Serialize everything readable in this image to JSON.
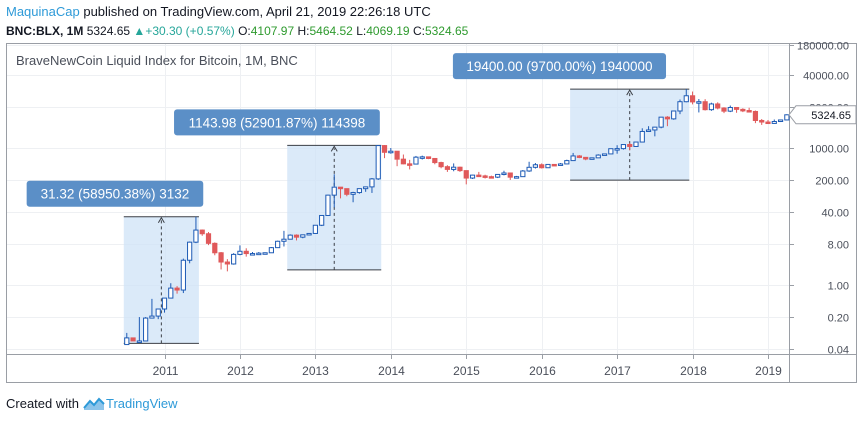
{
  "header": {
    "publisher": "MaquinaCap",
    "published_text": "published on TradingView.com, April 21, 2019 22:26:18 UTC",
    "symbol": "BNC:BLX, 1M",
    "last": "5324.65",
    "change": "+30.30 (+0.57%)",
    "o_label": "O:",
    "o_value": "4107.97",
    "h_label": "H:",
    "h_value": "5464.52",
    "l_label": "L:",
    "l_value": "4069.19",
    "c_label": "C:",
    "c_value": "5324.65"
  },
  "footer": {
    "created_with": "Created with",
    "brand": "TradingView"
  },
  "chart_data": {
    "type": "candlestick",
    "title": "BraveNewCoin Liquid Index for Bitcoin, 1M, BNC",
    "y_scale": "log",
    "y_ticks": [
      "180000.00",
      "40000.00",
      "8000.00",
      "1000.00",
      "200.00",
      "40.00",
      "8.00",
      "1.00",
      "0.20",
      "0.04"
    ],
    "x_ticks": [
      "2011",
      "2012",
      "2013",
      "2014",
      "2015",
      "2016",
      "2017",
      "2018",
      "2019"
    ],
    "last_price_label": "5324.65",
    "colors": {
      "up": "#1e5bb5",
      "down": "#e0595a",
      "range_fill": "#cfe3f7",
      "label_bg": "#5b8fc7",
      "grid": "#eef0f3"
    },
    "candles": [
      {
        "t": "2010-07",
        "o": 0.05,
        "h": 0.09,
        "l": 0.05,
        "c": 0.07
      },
      {
        "t": "2010-08",
        "o": 0.07,
        "h": 0.07,
        "l": 0.06,
        "c": 0.06
      },
      {
        "t": "2010-09",
        "o": 0.06,
        "h": 0.2,
        "l": 0.06,
        "c": 0.06
      },
      {
        "t": "2010-10",
        "o": 0.06,
        "h": 0.2,
        "l": 0.06,
        "c": 0.19
      },
      {
        "t": "2010-11",
        "o": 0.19,
        "h": 0.5,
        "l": 0.19,
        "c": 0.21
      },
      {
        "t": "2010-12",
        "o": 0.21,
        "h": 0.3,
        "l": 0.18,
        "c": 0.3
      },
      {
        "t": "2011-01",
        "o": 0.3,
        "h": 0.52,
        "l": 0.25,
        "c": 0.52
      },
      {
        "t": "2011-02",
        "o": 0.52,
        "h": 1.1,
        "l": 0.7,
        "c": 0.86
      },
      {
        "t": "2011-03",
        "o": 0.86,
        "h": 0.95,
        "l": 0.65,
        "c": 0.78
      },
      {
        "t": "2011-04",
        "o": 0.78,
        "h": 3.8,
        "l": 0.67,
        "c": 3.5
      },
      {
        "t": "2011-05",
        "o": 3.5,
        "h": 9.0,
        "l": 3.0,
        "c": 8.7
      },
      {
        "t": "2011-06",
        "o": 8.7,
        "h": 31.32,
        "l": 8.3,
        "c": 16.0
      },
      {
        "t": "2011-07",
        "o": 16.0,
        "h": 16.5,
        "l": 12.0,
        "c": 13.3
      },
      {
        "t": "2011-08",
        "o": 13.3,
        "h": 14.5,
        "l": 7.5,
        "c": 8.2
      },
      {
        "t": "2011-09",
        "o": 8.2,
        "h": 8.6,
        "l": 4.5,
        "c": 5.1
      },
      {
        "t": "2011-10",
        "o": 5.1,
        "h": 5.3,
        "l": 2.2,
        "c": 3.2
      },
      {
        "t": "2011-11",
        "o": 3.2,
        "h": 3.7,
        "l": 2.0,
        "c": 2.9
      },
      {
        "t": "2011-12",
        "o": 2.9,
        "h": 5.0,
        "l": 2.8,
        "c": 4.7
      },
      {
        "t": "2012-01",
        "o": 4.7,
        "h": 7.4,
        "l": 4.5,
        "c": 5.5
      },
      {
        "t": "2012-02",
        "o": 5.5,
        "h": 6.4,
        "l": 4.2,
        "c": 4.9
      },
      {
        "t": "2012-03",
        "o": 4.9,
        "h": 5.3,
        "l": 4.6,
        "c": 4.9
      },
      {
        "t": "2012-04",
        "o": 4.9,
        "h": 5.3,
        "l": 4.8,
        "c": 5.0
      },
      {
        "t": "2012-05",
        "o": 5.0,
        "h": 5.2,
        "l": 4.9,
        "c": 5.1
      },
      {
        "t": "2012-06",
        "o": 5.1,
        "h": 6.8,
        "l": 5.1,
        "c": 6.6
      },
      {
        "t": "2012-07",
        "o": 6.6,
        "h": 9.4,
        "l": 6.5,
        "c": 9.1
      },
      {
        "t": "2012-08",
        "o": 9.1,
        "h": 15.4,
        "l": 7.0,
        "c": 10.1
      },
      {
        "t": "2012-09",
        "o": 10.1,
        "h": 12.9,
        "l": 10.0,
        "c": 12.4
      },
      {
        "t": "2012-10",
        "o": 12.4,
        "h": 12.9,
        "l": 9.5,
        "c": 11.2
      },
      {
        "t": "2012-11",
        "o": 11.2,
        "h": 12.8,
        "l": 10.6,
        "c": 12.6
      },
      {
        "t": "2012-12",
        "o": 12.6,
        "h": 13.8,
        "l": 12.3,
        "c": 13.5
      },
      {
        "t": "2013-01",
        "o": 13.5,
        "h": 20.5,
        "l": 13.3,
        "c": 20.4
      },
      {
        "t": "2013-02",
        "o": 20.4,
        "h": 33.4,
        "l": 19.6,
        "c": 33.4
      },
      {
        "t": "2013-03",
        "o": 33.4,
        "h": 95,
        "l": 33.0,
        "c": 93
      },
      {
        "t": "2013-04",
        "o": 93,
        "h": 266,
        "l": 50,
        "c": 139
      },
      {
        "t": "2013-05",
        "o": 139,
        "h": 140,
        "l": 79,
        "c": 129
      },
      {
        "t": "2013-06",
        "o": 129,
        "h": 129,
        "l": 88,
        "c": 97
      },
      {
        "t": "2013-07",
        "o": 97,
        "h": 110,
        "l": 65,
        "c": 106
      },
      {
        "t": "2013-08",
        "o": 106,
        "h": 130,
        "l": 100,
        "c": 129
      },
      {
        "t": "2013-09",
        "o": 129,
        "h": 144,
        "l": 110,
        "c": 141
      },
      {
        "t": "2013-10",
        "o": 141,
        "h": 220,
        "l": 104,
        "c": 211
      },
      {
        "t": "2013-11",
        "o": 211,
        "h": 1143.98,
        "l": 200,
        "c": 1130
      },
      {
        "t": "2013-12",
        "o": 1130,
        "h": 1160,
        "l": 600,
        "c": 805
      },
      {
        "t": "2014-01",
        "o": 805,
        "h": 1000,
        "l": 750,
        "c": 850
      },
      {
        "t": "2014-02",
        "o": 850,
        "h": 850,
        "l": 400,
        "c": 570
      },
      {
        "t": "2014-03",
        "o": 570,
        "h": 720,
        "l": 440,
        "c": 450
      },
      {
        "t": "2014-04",
        "o": 450,
        "h": 550,
        "l": 340,
        "c": 445
      },
      {
        "t": "2014-05",
        "o": 445,
        "h": 670,
        "l": 440,
        "c": 630
      },
      {
        "t": "2014-06",
        "o": 630,
        "h": 680,
        "l": 560,
        "c": 640
      },
      {
        "t": "2014-07",
        "o": 640,
        "h": 650,
        "l": 570,
        "c": 590
      },
      {
        "t": "2014-08",
        "o": 590,
        "h": 600,
        "l": 440,
        "c": 480
      },
      {
        "t": "2014-09",
        "o": 480,
        "h": 500,
        "l": 360,
        "c": 390
      },
      {
        "t": "2014-10",
        "o": 390,
        "h": 420,
        "l": 300,
        "c": 340
      },
      {
        "t": "2014-11",
        "o": 340,
        "h": 460,
        "l": 310,
        "c": 380
      },
      {
        "t": "2014-12",
        "o": 380,
        "h": 390,
        "l": 300,
        "c": 320
      },
      {
        "t": "2015-01",
        "o": 320,
        "h": 320,
        "l": 160,
        "c": 220
      },
      {
        "t": "2015-02",
        "o": 220,
        "h": 260,
        "l": 210,
        "c": 255
      },
      {
        "t": "2015-03",
        "o": 255,
        "h": 300,
        "l": 240,
        "c": 245
      },
      {
        "t": "2015-04",
        "o": 245,
        "h": 260,
        "l": 215,
        "c": 236
      },
      {
        "t": "2015-05",
        "o": 236,
        "h": 248,
        "l": 225,
        "c": 230
      },
      {
        "t": "2015-06",
        "o": 230,
        "h": 268,
        "l": 220,
        "c": 264
      },
      {
        "t": "2015-07",
        "o": 264,
        "h": 318,
        "l": 252,
        "c": 284
      },
      {
        "t": "2015-08",
        "o": 284,
        "h": 285,
        "l": 200,
        "c": 230
      },
      {
        "t": "2015-09",
        "o": 230,
        "h": 245,
        "l": 225,
        "c": 236
      },
      {
        "t": "2015-10",
        "o": 236,
        "h": 330,
        "l": 235,
        "c": 314
      },
      {
        "t": "2015-11",
        "o": 314,
        "h": 500,
        "l": 300,
        "c": 378
      },
      {
        "t": "2015-12",
        "o": 378,
        "h": 470,
        "l": 355,
        "c": 430
      },
      {
        "t": "2016-01",
        "o": 430,
        "h": 460,
        "l": 355,
        "c": 370
      },
      {
        "t": "2016-02",
        "o": 370,
        "h": 445,
        "l": 365,
        "c": 437
      },
      {
        "t": "2016-03",
        "o": 437,
        "h": 440,
        "l": 405,
        "c": 416
      },
      {
        "t": "2016-04",
        "o": 416,
        "h": 470,
        "l": 415,
        "c": 448
      },
      {
        "t": "2016-05",
        "o": 448,
        "h": 555,
        "l": 445,
        "c": 530
      },
      {
        "t": "2016-06",
        "o": 530,
        "h": 780,
        "l": 530,
        "c": 670
      },
      {
        "t": "2016-07",
        "o": 670,
        "h": 700,
        "l": 600,
        "c": 624
      },
      {
        "t": "2016-08",
        "o": 624,
        "h": 625,
        "l": 540,
        "c": 574
      },
      {
        "t": "2016-09",
        "o": 574,
        "h": 612,
        "l": 570,
        "c": 609
      },
      {
        "t": "2016-10",
        "o": 609,
        "h": 730,
        "l": 605,
        "c": 700
      },
      {
        "t": "2016-11",
        "o": 700,
        "h": 750,
        "l": 690,
        "c": 742
      },
      {
        "t": "2016-12",
        "o": 742,
        "h": 975,
        "l": 740,
        "c": 965
      },
      {
        "t": "2017-01",
        "o": 965,
        "h": 1150,
        "l": 750,
        "c": 970
      },
      {
        "t": "2017-02",
        "o": 970,
        "h": 1200,
        "l": 920,
        "c": 1190
      },
      {
        "t": "2017-03",
        "o": 1190,
        "h": 1290,
        "l": 890,
        "c": 1080
      },
      {
        "t": "2017-04",
        "o": 1080,
        "h": 1350,
        "l": 1060,
        "c": 1350
      },
      {
        "t": "2017-05",
        "o": 1350,
        "h": 2700,
        "l": 1320,
        "c": 2300
      },
      {
        "t": "2017-06",
        "o": 2300,
        "h": 3000,
        "l": 2300,
        "c": 2480
      },
      {
        "t": "2017-07",
        "o": 2480,
        "h": 2900,
        "l": 1800,
        "c": 2860
      },
      {
        "t": "2017-08",
        "o": 2860,
        "h": 4750,
        "l": 2700,
        "c": 4730
      },
      {
        "t": "2017-09",
        "o": 4730,
        "h": 4980,
        "l": 3000,
        "c": 4340
      },
      {
        "t": "2017-10",
        "o": 4340,
        "h": 6470,
        "l": 4150,
        "c": 6450
      },
      {
        "t": "2017-11",
        "o": 6450,
        "h": 11500,
        "l": 5500,
        "c": 10300
      },
      {
        "t": "2017-12",
        "o": 10300,
        "h": 19400,
        "l": 10000,
        "c": 13900
      },
      {
        "t": "2018-01",
        "o": 13900,
        "h": 17200,
        "l": 9000,
        "c": 10200
      },
      {
        "t": "2018-02",
        "o": 10200,
        "h": 11800,
        "l": 6000,
        "c": 10300
      },
      {
        "t": "2018-03",
        "o": 10300,
        "h": 11700,
        "l": 6600,
        "c": 6900
      },
      {
        "t": "2018-04",
        "o": 6900,
        "h": 9800,
        "l": 6500,
        "c": 9200
      },
      {
        "t": "2018-05",
        "o": 9200,
        "h": 10000,
        "l": 7000,
        "c": 7500
      },
      {
        "t": "2018-06",
        "o": 7500,
        "h": 7800,
        "l": 5800,
        "c": 6400
      },
      {
        "t": "2018-07",
        "o": 6400,
        "h": 8500,
        "l": 6100,
        "c": 7700
      },
      {
        "t": "2018-08",
        "o": 7700,
        "h": 7800,
        "l": 5900,
        "c": 7000
      },
      {
        "t": "2018-09",
        "o": 7000,
        "h": 7400,
        "l": 6100,
        "c": 6600
      },
      {
        "t": "2018-10",
        "o": 6600,
        "h": 7600,
        "l": 6200,
        "c": 6300
      },
      {
        "t": "2018-11",
        "o": 6300,
        "h": 6600,
        "l": 3500,
        "c": 4000
      },
      {
        "t": "2018-12",
        "o": 4000,
        "h": 4300,
        "l": 3200,
        "c": 3700
      },
      {
        "t": "2019-01",
        "o": 3700,
        "h": 4100,
        "l": 3400,
        "c": 3450
      },
      {
        "t": "2019-02",
        "o": 3450,
        "h": 4200,
        "l": 3400,
        "c": 3800
      },
      {
        "t": "2019-03",
        "o": 3800,
        "h": 4100,
        "l": 3700,
        "c": 4107.97
      },
      {
        "t": "2019-04",
        "o": 4107.97,
        "h": 5464.52,
        "l": 4069.19,
        "c": 5324.65
      }
    ],
    "annotations": [
      {
        "label": "31.32 (58950.38%) 3132",
        "from_date": "2010-07",
        "to_date": "2011-06",
        "low": 0.053,
        "high": 31.32
      },
      {
        "label": "1143.98 (52901.87%) 114398",
        "from_date": "2012-09",
        "to_date": "2013-11",
        "low": 2.16,
        "high": 1143.98
      },
      {
        "label": "19400.00 (9700.00%) 1940000",
        "from_date": "2016-06",
        "to_date": "2017-12",
        "low": 198,
        "high": 19400
      }
    ]
  }
}
